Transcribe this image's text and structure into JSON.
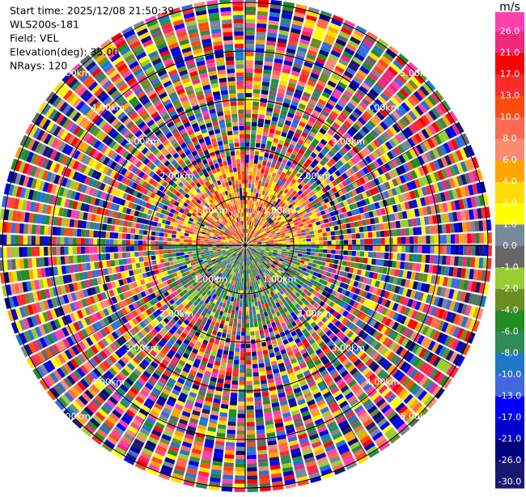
{
  "chart_data": {
    "type": "ppi",
    "info": [
      "Start time: 2025/12/08 21:50:39",
      "WLS200s-181",
      "Field: VEL",
      "Elevation(deg): 35.00",
      "NRays: 120"
    ],
    "colorbar": {
      "title": "m/s",
      "ticks": [
        {
          "value": 26,
          "label": "26.0"
        },
        {
          "value": 21,
          "label": "21.0"
        },
        {
          "value": 17,
          "label": "17.0"
        },
        {
          "value": 13,
          "label": "13.0"
        },
        {
          "value": 10,
          "label": "10.0"
        },
        {
          "value": 8,
          "label": "8.0"
        },
        {
          "value": 6,
          "label": "6.0"
        },
        {
          "value": 4,
          "label": "4.0"
        },
        {
          "value": 2,
          "label": "2.0"
        },
        {
          "value": 1,
          "label": "1.0"
        },
        {
          "value": 0,
          "label": "0.0"
        },
        {
          "value": -1,
          "label": "-1.0"
        },
        {
          "value": -2,
          "label": "-2.0"
        },
        {
          "value": -4,
          "label": "-4.0"
        },
        {
          "value": -6,
          "label": "-6.0"
        },
        {
          "value": -8,
          "label": "-8.0"
        },
        {
          "value": -10,
          "label": "-10.0"
        },
        {
          "value": -13,
          "label": "-13.0"
        },
        {
          "value": -17,
          "label": "-17.0"
        },
        {
          "value": -21,
          "label": "-21.0"
        },
        {
          "value": -26,
          "label": "-26.0"
        },
        {
          "value": -30,
          "label": "-30.0"
        }
      ],
      "colors": [
        "#ff3fae",
        "#f0287a",
        "#ff0000",
        "#ff2a2a",
        "#ff4a10",
        "#ff6a50",
        "#fa8a70",
        "#ffa500",
        "#ffdd00",
        "#ffff00",
        "#778899",
        "#666666",
        "#9acd32",
        "#6b8e23",
        "#228b22",
        "#2e8b57",
        "#1e78c8",
        "#4169e1",
        "#0000ff",
        "#0000cd",
        "#000080",
        "#191970"
      ]
    },
    "rlim": [
      0,
      5
    ],
    "rings": [
      {
        "value": 1,
        "label": "1.00km"
      },
      {
        "value": 2,
        "label": "2.00km"
      },
      {
        "value": 3,
        "label": "3.00km"
      },
      {
        "value": 4,
        "label": "4.00km"
      },
      {
        "value": 5,
        "label": "5.00km"
      }
    ]
  }
}
